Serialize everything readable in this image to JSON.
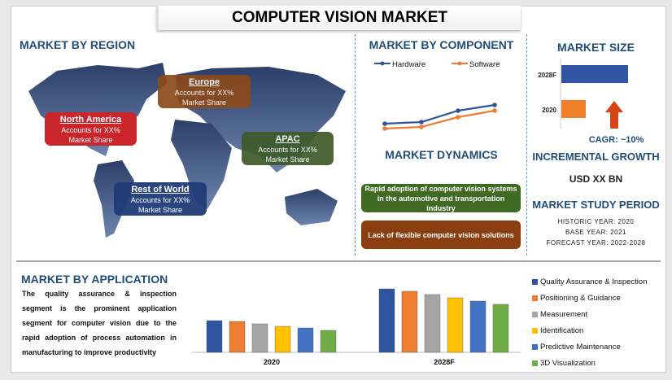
{
  "title": "COMPUTER VISION MARKET",
  "region": {
    "heading": "MARKET BY REGION",
    "callouts": [
      {
        "name": "North America",
        "text1": "Accounts for XX%",
        "text2": "Market Share",
        "color": "#c9252b"
      },
      {
        "name": "Europe",
        "text1": "Accounts for XX%",
        "text2": "Market Share",
        "color": "#8b4a1c"
      },
      {
        "name": "APAC",
        "text1": "Accounts for XX%",
        "text2": "Market Share",
        "color": "#3d5a2a"
      },
      {
        "name": "Rest of World",
        "text1": "Accounts for XX%",
        "text2": "Market Share",
        "color": "#1f3c78"
      }
    ]
  },
  "component": {
    "heading": "MARKET BY COMPONENT"
  },
  "dynamics": {
    "heading": "MARKET DYNAMICS",
    "items": [
      {
        "text": "Rapid adoption of computer vision systems in the automotive and transportation industry",
        "color": "#3f6a23"
      },
      {
        "text": "Lack of flexible computer vision solutions",
        "color": "#8b3f10"
      }
    ]
  },
  "size": {
    "heading": "MARKET SIZE",
    "cagr": "CAGR:  ~10%",
    "arrow_icon": "arrow-up-icon"
  },
  "growth": {
    "heading": "INCREMENTAL GROWTH",
    "value": "USD XX BN"
  },
  "study": {
    "heading": "MARKET STUDY PERIOD",
    "historic": "HISTORIC YEAR: 2020",
    "base": "BASE YEAR: 2021",
    "forecast": "FORECAST YEAR: 2022-2028"
  },
  "application": {
    "heading": "MARKET BY APPLICATION",
    "description": "The quality assurance & inspection segment is the prominent application segment for computer vision due to the rapid adoption of process automation in manufacturing to improve productivity"
  },
  "chart_data": [
    {
      "type": "line",
      "legend_position": "top",
      "series": [
        {
          "name": "Hardware",
          "color": "#2f5597",
          "values": [
            13,
            15,
            29,
            36
          ]
        },
        {
          "name": "Software",
          "color": "#ed7d31",
          "values": [
            7,
            9,
            21,
            29
          ]
        }
      ]
    },
    {
      "type": "bar",
      "orientation": "horizontal",
      "categories": [
        "2028F",
        "2020"
      ],
      "values": [
        82,
        30
      ],
      "colors": [
        "#2f55a4",
        "#f07f2a"
      ]
    },
    {
      "type": "bar",
      "categories": [
        "2020",
        "2028F"
      ],
      "legend_position": "right",
      "series": [
        {
          "name": "Quality Assurance & Inspection",
          "color": "#2e54a0",
          "values": [
            39,
            78
          ]
        },
        {
          "name": "Positioning & Guidance",
          "color": "#ef7d31",
          "values": [
            38,
            75
          ]
        },
        {
          "name": "Measurement",
          "color": "#a5a5a5",
          "values": [
            35,
            71
          ]
        },
        {
          "name": "Identification",
          "color": "#ffc000",
          "values": [
            32,
            67
          ]
        },
        {
          "name": "Predictive Maintenance",
          "color": "#4472c4",
          "values": [
            30,
            63
          ]
        },
        {
          "name": "3D Visualization",
          "color": "#70ad47",
          "values": [
            27,
            59
          ]
        }
      ]
    }
  ]
}
